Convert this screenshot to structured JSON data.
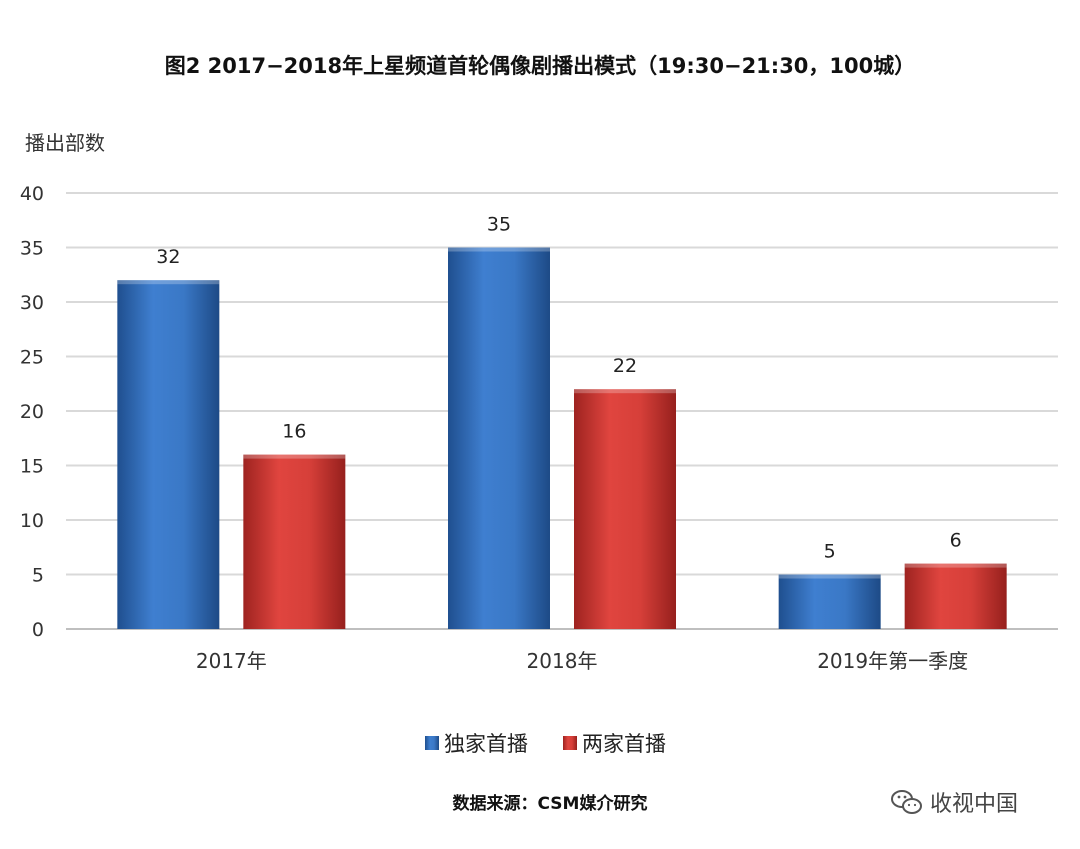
{
  "chart_data": {
    "type": "bar",
    "title": "图2  2017−2018年上星频道首轮偶像剧播出模式（19:30−21:30，100城）",
    "ylabel": "播出部数",
    "xlabel": "",
    "categories": [
      "2017年",
      "2018年",
      "2019年第一季度"
    ],
    "series": [
      {
        "name": "独家首播",
        "values": [
          32,
          35,
          5
        ],
        "color": "#2f6cb8"
      },
      {
        "name": "两家首播",
        "values": [
          16,
          22,
          6
        ],
        "color": "#c9302c"
      }
    ],
    "ylim": [
      0,
      40
    ],
    "yticks": [
      0,
      5,
      10,
      15,
      20,
      25,
      30,
      35,
      40
    ],
    "grid": true,
    "legend": "bottom-center"
  },
  "source": "数据来源：CSM媒介研究",
  "watermark": "收视中国",
  "colors": {
    "grid": "#d9d9d9",
    "axis": "#bfbfbf"
  }
}
